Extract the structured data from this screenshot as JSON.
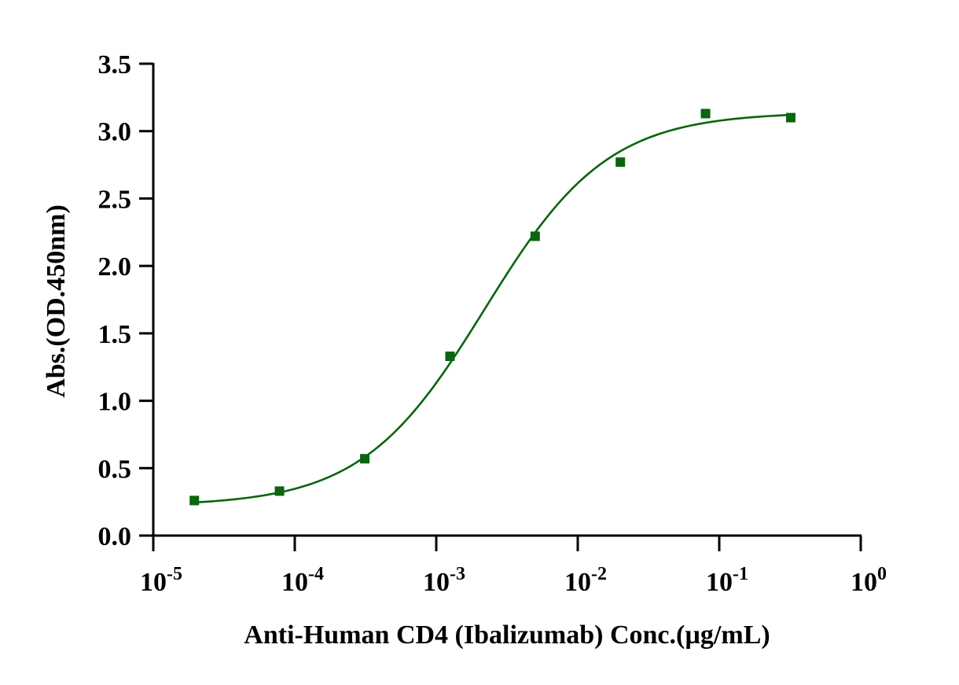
{
  "chart_data": {
    "type": "scatter",
    "title": "",
    "xlabel": "Anti-Human CD4 (Ibalizumab)  Conc.(µg/mL)",
    "ylabel": "Abs.(OD.450nm)",
    "x_scale": "log",
    "xlim": [
      1e-05,
      1
    ],
    "ylim": [
      0,
      3.5
    ],
    "x_ticks": [
      {
        "value": 1e-05,
        "base": "10",
        "exp": "-5"
      },
      {
        "value": 0.0001,
        "base": "10",
        "exp": "-4"
      },
      {
        "value": 0.001,
        "base": "10",
        "exp": "-3"
      },
      {
        "value": 0.01,
        "base": "10",
        "exp": "-2"
      },
      {
        "value": 0.1,
        "base": "10",
        "exp": "-1"
      },
      {
        "value": 1,
        "base": "10",
        "exp": "0"
      }
    ],
    "y_ticks": [
      "0.0",
      "0.5",
      "1.0",
      "1.5",
      "2.0",
      "2.5",
      "3.0",
      "3.5"
    ],
    "grid": false,
    "color": "#0a6410",
    "series": [
      {
        "x": [
          1.95e-05,
          7.8e-05,
          0.0003125,
          0.00125,
          0.005,
          0.02,
          0.08,
          0.32
        ],
        "y": [
          0.26,
          0.33,
          0.57,
          1.33,
          2.22,
          2.77,
          3.13,
          3.1
        ]
      }
    ],
    "fit": {
      "type": "4PL",
      "bottom": 0.22,
      "top": 3.14,
      "ec50": 0.0022,
      "hill": 1.0
    }
  }
}
